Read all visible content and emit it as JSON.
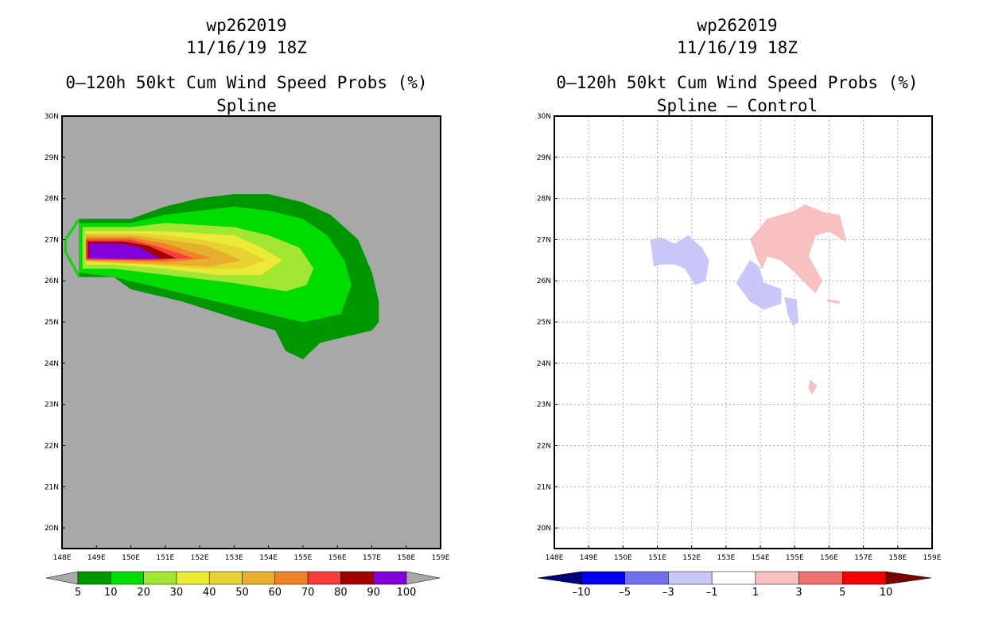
{
  "chart_data": [
    {
      "type": "filled-contour-map",
      "title_lines": [
        "wp262019",
        "11/16/19 18Z",
        "0–120h 50kt Cum Wind Speed Probs (%)",
        "Spline"
      ],
      "xlabel": "",
      "ylabel": "",
      "xlim": [
        148,
        159
      ],
      "ylim": [
        19.5,
        30
      ],
      "background_color": "#a8a8a8",
      "grid": false,
      "x_ticks": [
        "148E",
        "149E",
        "150E",
        "151E",
        "152E",
        "153E",
        "154E",
        "155E",
        "156E",
        "157E",
        "158E",
        "159E"
      ],
      "y_ticks": [
        "20N",
        "21N",
        "22N",
        "23N",
        "24N",
        "25N",
        "26N",
        "27N",
        "28N",
        "29N",
        "30N"
      ],
      "colorbar": {
        "labels": [
          "5",
          "10",
          "20",
          "30",
          "40",
          "50",
          "60",
          "70",
          "80",
          "90",
          "100"
        ],
        "colors": [
          "#009600",
          "#00dc00",
          "#a0e632",
          "#ebeb37",
          "#e6d232",
          "#e6af2d",
          "#f08228",
          "#fa3c3c",
          "#a00000",
          "#8200dc"
        ],
        "end_colors": [
          "#a8a8a8",
          "#a8a8a8"
        ]
      },
      "contours": [
        {
          "level": "5-10",
          "color": "#009600",
          "polygon": [
            [
              148.5,
              27.5
            ],
            [
              150,
              27.5
            ],
            [
              151,
              27.8
            ],
            [
              152,
              28
            ],
            [
              153,
              28.1
            ],
            [
              154,
              28.1
            ],
            [
              155,
              27.9
            ],
            [
              155.8,
              27.6
            ],
            [
              156.6,
              27
            ],
            [
              157,
              26.2
            ],
            [
              157.2,
              25.5
            ],
            [
              157.2,
              25
            ],
            [
              157,
              24.8
            ],
            [
              155.5,
              24.5
            ],
            [
              155,
              24.1
            ],
            [
              154.5,
              24.3
            ],
            [
              154.2,
              24.8
            ],
            [
              153,
              25.1
            ],
            [
              151.5,
              25.5
            ],
            [
              150,
              25.8
            ],
            [
              149.5,
              26.1
            ],
            [
              148.5,
              26.1
            ],
            [
              148.5,
              27.5
            ]
          ]
        },
        {
          "level": "10-20",
          "color": "#00dc00",
          "polygon": [
            [
              148.5,
              27.4
            ],
            [
              150,
              27.4
            ],
            [
              151,
              27.6
            ],
            [
              152,
              27.7
            ],
            [
              153,
              27.8
            ],
            [
              154,
              27.7
            ],
            [
              155,
              27.5
            ],
            [
              155.7,
              27.1
            ],
            [
              156.2,
              26.5
            ],
            [
              156.4,
              25.9
            ],
            [
              156.1,
              25.2
            ],
            [
              155,
              25
            ],
            [
              153.5,
              25.3
            ],
            [
              152,
              25.6
            ],
            [
              150.5,
              25.9
            ],
            [
              149.5,
              26.1
            ],
            [
              148.5,
              26.2
            ],
            [
              148.5,
              27.4
            ]
          ]
        },
        {
          "level": "20-30",
          "color": "#a0e632",
          "polygon": [
            [
              148.6,
              27.3
            ],
            [
              150,
              27.3
            ],
            [
              151,
              27.4
            ],
            [
              152,
              27.35
            ],
            [
              153,
              27.3
            ],
            [
              154,
              27.1
            ],
            [
              154.9,
              26.8
            ],
            [
              155.3,
              26.3
            ],
            [
              155.1,
              25.9
            ],
            [
              154.5,
              25.75
            ],
            [
              153,
              25.95
            ],
            [
              151,
              26.15
            ],
            [
              149.5,
              26.3
            ],
            [
              148.6,
              26.3
            ],
            [
              148.6,
              27.3
            ]
          ]
        },
        {
          "level": "30-40",
          "color": "#ebeb37",
          "polygon": [
            [
              148.7,
              27.2
            ],
            [
              150,
              27.2
            ],
            [
              151,
              27.2
            ],
            [
              152,
              27.15
            ],
            [
              153,
              27.1
            ],
            [
              153.8,
              26.8
            ],
            [
              154.4,
              26.5
            ],
            [
              153.8,
              26.15
            ],
            [
              152.5,
              26.15
            ],
            [
              151,
              26.3
            ],
            [
              149.5,
              26.4
            ],
            [
              148.7,
              26.4
            ],
            [
              148.7,
              27.2
            ]
          ]
        },
        {
          "level": "40-50",
          "color": "#e6d232",
          "polygon": [
            [
              148.7,
              27.15
            ],
            [
              150,
              27.15
            ],
            [
              151,
              27.1
            ],
            [
              152,
              27
            ],
            [
              153.2,
              26.8
            ],
            [
              153.9,
              26.5
            ],
            [
              153.2,
              26.3
            ],
            [
              152,
              26.3
            ],
            [
              150.5,
              26.4
            ],
            [
              148.7,
              26.45
            ],
            [
              148.7,
              27.15
            ]
          ]
        },
        {
          "level": "50-60",
          "color": "#e6af2d",
          "polygon": [
            [
              148.7,
              27.1
            ],
            [
              150,
              27.1
            ],
            [
              151,
              27
            ],
            [
              152.2,
              26.85
            ],
            [
              153.2,
              26.5
            ],
            [
              152.3,
              26.35
            ],
            [
              151,
              26.4
            ],
            [
              149.5,
              26.45
            ],
            [
              148.7,
              26.5
            ],
            [
              148.7,
              27.1
            ]
          ]
        },
        {
          "level": "60-70",
          "color": "#f08228",
          "polygon": [
            [
              148.7,
              27.05
            ],
            [
              150,
              27.05
            ],
            [
              151,
              26.9
            ],
            [
              152.3,
              26.55
            ],
            [
              151,
              26.45
            ],
            [
              149.5,
              26.5
            ],
            [
              148.7,
              26.5
            ],
            [
              148.7,
              27.05
            ]
          ]
        },
        {
          "level": "70-80",
          "color": "#fa3c3c",
          "polygon": [
            [
              148.7,
              27.0
            ],
            [
              150,
              27.0
            ],
            [
              150.7,
              26.85
            ],
            [
              151.8,
              26.55
            ],
            [
              150.7,
              26.5
            ],
            [
              148.7,
              26.52
            ],
            [
              148.7,
              27.0
            ]
          ]
        },
        {
          "level": "80-90",
          "color": "#a00000",
          "polygon": [
            [
              148.75,
              26.95
            ],
            [
              149.8,
              26.95
            ],
            [
              150.5,
              26.85
            ],
            [
              151.3,
              26.55
            ],
            [
              150.4,
              26.53
            ],
            [
              148.75,
              26.55
            ],
            [
              148.75,
              26.95
            ]
          ]
        },
        {
          "level": "90-100",
          "color": "#8200dc",
          "polygon": [
            [
              148.8,
              26.9
            ],
            [
              149.7,
              26.9
            ],
            [
              150.3,
              26.8
            ],
            [
              150.8,
              26.55
            ],
            [
              148.8,
              26.55
            ],
            [
              148.8,
              26.9
            ]
          ]
        }
      ],
      "outline": [
        [
          148.5,
          27.5
        ],
        [
          148.1,
          27
        ],
        [
          148.1,
          26.7
        ],
        [
          148.5,
          26.1
        ]
      ]
    },
    {
      "type": "filled-contour-map",
      "title_lines": [
        "wp262019",
        "11/16/19 18Z",
        "0–120h 50kt Cum Wind Speed Probs (%)",
        "Spline – Control"
      ],
      "xlabel": "",
      "ylabel": "",
      "xlim": [
        148,
        159
      ],
      "ylim": [
        19.5,
        30
      ],
      "background_color": "#ffffff",
      "grid": true,
      "x_ticks": [
        "148E",
        "149E",
        "150E",
        "151E",
        "152E",
        "153E",
        "154E",
        "155E",
        "156E",
        "157E",
        "158E",
        "159E"
      ],
      "y_ticks": [
        "20N",
        "21N",
        "22N",
        "23N",
        "24N",
        "25N",
        "26N",
        "27N",
        "28N",
        "29N",
        "30N"
      ],
      "colorbar": {
        "labels": [
          "–10",
          "–5",
          "–3",
          "–1",
          "1",
          "3",
          "5",
          "10"
        ],
        "colors": [
          "#0000f0",
          "#7070f0",
          "#c8c8f8",
          "#ffffff",
          "#f8c0c0",
          "#f07070",
          "#f00000"
        ],
        "end_colors": [
          "#00007a",
          "#7a0000"
        ]
      },
      "contours": [
        {
          "level": "-3 to -1",
          "color": "#c8c8f8",
          "polygon": [
            [
              150.8,
              27.0
            ],
            [
              151.1,
              27.05
            ],
            [
              151.5,
              26.9
            ],
            [
              151.9,
              27.1
            ],
            [
              152.3,
              26.8
            ],
            [
              152.5,
              26.5
            ],
            [
              152.4,
              26.0
            ],
            [
              152.1,
              25.9
            ],
            [
              151.8,
              26.3
            ],
            [
              151.5,
              26.4
            ],
            [
              151.1,
              26.4
            ],
            [
              150.9,
              26.35
            ],
            [
              150.8,
              27.0
            ]
          ]
        },
        {
          "level": "-3 to -1",
          "color": "#c8c8f8",
          "polygon": [
            [
              153.3,
              25.95
            ],
            [
              153.7,
              26.5
            ],
            [
              153.95,
              26.35
            ],
            [
              154.1,
              25.95
            ],
            [
              154.6,
              25.8
            ],
            [
              154.6,
              25.45
            ],
            [
              154.1,
              25.3
            ],
            [
              153.7,
              25.5
            ],
            [
              153.3,
              25.95
            ]
          ]
        },
        {
          "level": "-3 to -1",
          "color": "#c8c8f8",
          "polygon": [
            [
              154.7,
              25.6
            ],
            [
              155.05,
              25.55
            ],
            [
              155.1,
              25.0
            ],
            [
              154.95,
              24.9
            ],
            [
              154.8,
              25.2
            ],
            [
              154.7,
              25.6
            ]
          ]
        },
        {
          "level": "1 to 3",
          "color": "#f8c0c0",
          "polygon": [
            [
              153.7,
              27.0
            ],
            [
              154.2,
              27.5
            ],
            [
              155,
              27.7
            ],
            [
              155.3,
              27.85
            ],
            [
              155.9,
              27.65
            ],
            [
              156.3,
              27.6
            ],
            [
              156.4,
              27.3
            ],
            [
              156.5,
              26.95
            ],
            [
              156.0,
              27.2
            ],
            [
              155.6,
              27.1
            ],
            [
              155.4,
              26.6
            ],
            [
              155.8,
              26.0
            ],
            [
              155.6,
              25.7
            ],
            [
              155.0,
              26.2
            ],
            [
              154.6,
              26.5
            ],
            [
              154.2,
              26.6
            ],
            [
              154.05,
              26.3
            ],
            [
              153.9,
              26.55
            ],
            [
              153.8,
              26.8
            ],
            [
              153.7,
              27.0
            ]
          ]
        },
        {
          "level": "1 to 3",
          "color": "#f8c0c0",
          "polygon": [
            [
              155.95,
              25.55
            ],
            [
              156.3,
              25.5
            ],
            [
              156.3,
              25.45
            ],
            [
              155.95,
              25.5
            ],
            [
              155.95,
              25.55
            ]
          ]
        },
        {
          "level": "1 to 3",
          "color": "#f8c0c0",
          "polygon": [
            [
              155.45,
              23.6
            ],
            [
              155.65,
              23.45
            ],
            [
              155.5,
              23.25
            ],
            [
              155.4,
              23.4
            ],
            [
              155.45,
              23.6
            ]
          ]
        }
      ],
      "outline": []
    }
  ]
}
